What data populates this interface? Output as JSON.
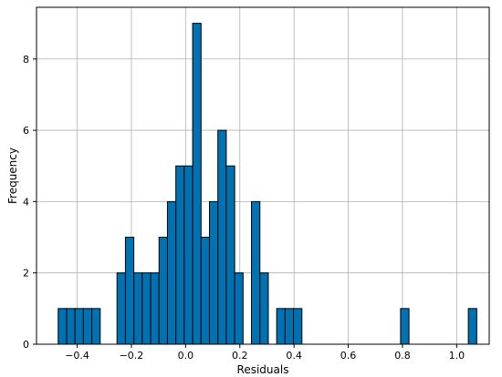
{
  "chart_data": {
    "type": "bar",
    "title": "",
    "xlabel": "Residuals",
    "ylabel": "Frequency",
    "xlim": [
      -0.55,
      1.12
    ],
    "ylim": [
      0,
      9.45
    ],
    "grid": true,
    "bar_color": "#0072b2",
    "xticks": [
      -0.4,
      -0.2,
      0.0,
      0.2,
      0.4,
      0.6,
      0.8,
      1.0
    ],
    "xtick_labels": [
      "−0.4",
      "−0.2",
      "0.0",
      "0.2",
      "0.4",
      "0.6",
      "0.8",
      "1.0"
    ],
    "yticks": [
      0,
      2,
      4,
      6,
      8
    ],
    "ytick_labels": [
      "0",
      "2",
      "4",
      "6",
      "8"
    ],
    "bin_width": 0.031,
    "bins": [
      {
        "x": -0.47,
        "count": 1
      },
      {
        "x": -0.439,
        "count": 1
      },
      {
        "x": -0.408,
        "count": 1
      },
      {
        "x": -0.377,
        "count": 1
      },
      {
        "x": -0.346,
        "count": 1
      },
      {
        "x": -0.253,
        "count": 2
      },
      {
        "x": -0.222,
        "count": 3
      },
      {
        "x": -0.191,
        "count": 2
      },
      {
        "x": -0.16,
        "count": 2
      },
      {
        "x": -0.129,
        "count": 2
      },
      {
        "x": -0.098,
        "count": 3
      },
      {
        "x": -0.067,
        "count": 4
      },
      {
        "x": -0.036,
        "count": 5
      },
      {
        "x": -0.005,
        "count": 5
      },
      {
        "x": 0.026,
        "count": 9
      },
      {
        "x": 0.057,
        "count": 3
      },
      {
        "x": 0.088,
        "count": 4
      },
      {
        "x": 0.119,
        "count": 6
      },
      {
        "x": 0.15,
        "count": 5
      },
      {
        "x": 0.181,
        "count": 2
      },
      {
        "x": 0.243,
        "count": 4
      },
      {
        "x": 0.274,
        "count": 2
      },
      {
        "x": 0.336,
        "count": 1
      },
      {
        "x": 0.367,
        "count": 1
      },
      {
        "x": 0.398,
        "count": 1
      },
      {
        "x": 0.793,
        "count": 1
      },
      {
        "x": 1.043,
        "count": 1
      }
    ]
  }
}
